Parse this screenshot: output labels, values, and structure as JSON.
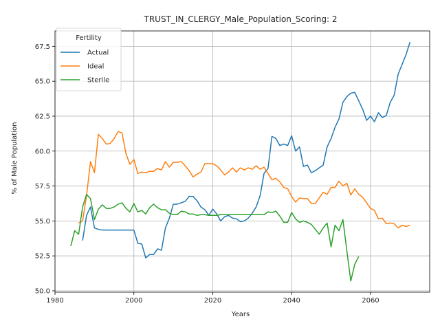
{
  "chart_data": {
    "type": "line",
    "title": "TRUST_IN_CLERGY_Male_Population_Scoring: 2",
    "xlabel": "Years",
    "ylabel": "% of Male Population",
    "xlim": [
      1980,
      2075
    ],
    "ylim": [
      49.9,
      68.6
    ],
    "xticks": [
      1980,
      2000,
      2020,
      2040,
      2060
    ],
    "yticks": [
      50.0,
      52.5,
      55.0,
      57.5,
      60.0,
      62.5,
      65.0,
      67.5
    ],
    "grid": true,
    "legend": {
      "title": "Fertility",
      "position": "top-left"
    },
    "series": [
      {
        "name": "Actual",
        "color": "#1f77b4",
        "x": [
          1987,
          1988,
          1989,
          1990,
          1991,
          1992,
          1993,
          1994,
          1995,
          1996,
          1997,
          1998,
          1999,
          2000,
          2001,
          2002,
          2003,
          2004,
          2005,
          2006,
          2007,
          2008,
          2009,
          2010,
          2011,
          2012,
          2013,
          2014,
          2015,
          2016,
          2017,
          2018,
          2019,
          2020,
          2021,
          2022,
          2023,
          2024,
          2025,
          2026,
          2027,
          2028,
          2029,
          2030,
          2031,
          2032,
          2033,
          2034,
          2035,
          2036,
          2037,
          2038,
          2039,
          2040,
          2041,
          2042,
          2043,
          2044,
          2045,
          2046,
          2047,
          2048,
          2049,
          2050,
          2051,
          2052,
          2053,
          2054,
          2055,
          2056,
          2057,
          2058,
          2059,
          2060,
          2061,
          2062,
          2063,
          2064,
          2065,
          2066,
          2067,
          2068,
          2069,
          2070
        ],
        "values": [
          53.6,
          55.4,
          56.0,
          54.5,
          54.4,
          54.35,
          54.35,
          54.35,
          54.35,
          54.35,
          54.35,
          54.35,
          54.35,
          54.35,
          53.4,
          53.35,
          52.35,
          52.6,
          52.6,
          53.0,
          52.9,
          54.5,
          55.2,
          56.2,
          56.2,
          56.3,
          56.4,
          56.75,
          56.75,
          56.45,
          56.0,
          55.8,
          55.4,
          55.85,
          55.5,
          55.0,
          55.3,
          55.4,
          55.2,
          55.15,
          54.95,
          55.0,
          55.2,
          55.55,
          56.0,
          56.8,
          58.4,
          58.75,
          61.05,
          60.9,
          60.4,
          60.5,
          60.4,
          61.1,
          60.0,
          60.3,
          58.9,
          59.0,
          58.45,
          58.6,
          58.8,
          59.0,
          60.3,
          60.9,
          61.7,
          62.3,
          63.5,
          63.9,
          64.15,
          64.2,
          63.6,
          63.0,
          62.2,
          62.5,
          62.1,
          62.75,
          62.4,
          62.55,
          63.5,
          64.0,
          65.5,
          66.2,
          66.9,
          67.8
        ]
      },
      {
        "name": "Ideal",
        "color": "#ff7f0e",
        "x": [
          1986,
          1987,
          1988,
          1989,
          1990,
          1991,
          1992,
          1993,
          1994,
          1995,
          1996,
          1997,
          1998,
          1999,
          2000,
          2001,
          2002,
          2003,
          2004,
          2005,
          2006,
          2007,
          2008,
          2009,
          2010,
          2011,
          2012,
          2013,
          2014,
          2015,
          2016,
          2017,
          2018,
          2019,
          2020,
          2021,
          2022,
          2023,
          2024,
          2025,
          2026,
          2027,
          2028,
          2029,
          2030,
          2031,
          2032,
          2033,
          2034,
          2035,
          2036,
          2037,
          2038,
          2039,
          2040,
          2041,
          2042,
          2043,
          2044,
          2045,
          2046,
          2047,
          2048,
          2049,
          2050,
          2051,
          2052,
          2053,
          2054,
          2055,
          2056,
          2057,
          2058,
          2059,
          2060,
          2061,
          2062,
          2063,
          2064,
          2065,
          2066,
          2067,
          2068,
          2069,
          2070
        ],
        "values": [
          54.85,
          55.0,
          56.8,
          59.25,
          58.45,
          61.2,
          60.9,
          60.5,
          60.55,
          60.9,
          61.4,
          61.3,
          59.8,
          59.05,
          59.4,
          58.4,
          58.5,
          58.45,
          58.55,
          58.55,
          58.75,
          58.65,
          59.25,
          58.85,
          59.2,
          59.2,
          59.25,
          58.95,
          58.6,
          58.15,
          58.35,
          58.5,
          59.1,
          59.1,
          59.1,
          58.95,
          58.65,
          58.3,
          58.5,
          58.8,
          58.5,
          58.8,
          58.65,
          58.8,
          58.7,
          58.95,
          58.7,
          58.85,
          58.4,
          57.95,
          58.05,
          57.8,
          57.4,
          57.3,
          56.75,
          56.35,
          56.65,
          56.6,
          56.6,
          56.25,
          56.25,
          56.65,
          57.05,
          56.9,
          57.4,
          57.4,
          57.85,
          57.5,
          57.7,
          56.85,
          57.3,
          56.9,
          56.7,
          56.3,
          55.9,
          55.75,
          55.15,
          55.2,
          54.8,
          54.85,
          54.8,
          54.5,
          54.7,
          54.6,
          54.7
        ]
      },
      {
        "name": "Sterile",
        "color": "#2ca02c",
        "x": [
          1984,
          1985,
          1986,
          1987,
          1988,
          1989,
          1990,
          1991,
          1992,
          1993,
          1994,
          1995,
          1996,
          1997,
          1998,
          1999,
          2000,
          2001,
          2002,
          2003,
          2004,
          2005,
          2006,
          2007,
          2008,
          2009,
          2010,
          2011,
          2012,
          2013,
          2014,
          2015,
          2016,
          2017,
          2018,
          2019,
          2020,
          2021,
          2022,
          2023,
          2024,
          2025,
          2026,
          2027,
          2028,
          2029,
          2030,
          2031,
          2032,
          2033,
          2034,
          2035,
          2036,
          2037,
          2038,
          2039,
          2040,
          2041,
          2042,
          2043,
          2044,
          2045,
          2046,
          2047,
          2048,
          2049,
          2050,
          2051,
          2052,
          2053,
          2054,
          2055,
          2056,
          2057
        ],
        "values": [
          53.2,
          54.3,
          54.05,
          56.0,
          56.9,
          56.6,
          55.1,
          55.85,
          56.15,
          55.9,
          55.9,
          56.0,
          56.2,
          56.3,
          55.9,
          55.65,
          56.25,
          55.65,
          55.75,
          55.5,
          55.95,
          56.2,
          55.95,
          55.8,
          55.8,
          55.55,
          55.45,
          55.45,
          55.7,
          55.65,
          55.5,
          55.5,
          55.4,
          55.45,
          55.45,
          55.4,
          55.4,
          55.4,
          55.45,
          55.45,
          55.45,
          55.45,
          55.45,
          55.45,
          55.45,
          55.45,
          55.45,
          55.45,
          55.45,
          55.45,
          55.65,
          55.6,
          55.7,
          55.35,
          54.9,
          54.9,
          55.6,
          55.15,
          54.9,
          55.0,
          54.9,
          54.75,
          54.4,
          54.05,
          54.5,
          54.85,
          53.15,
          54.7,
          54.3,
          55.1,
          52.85,
          50.7,
          51.9,
          52.45
        ]
      }
    ]
  }
}
